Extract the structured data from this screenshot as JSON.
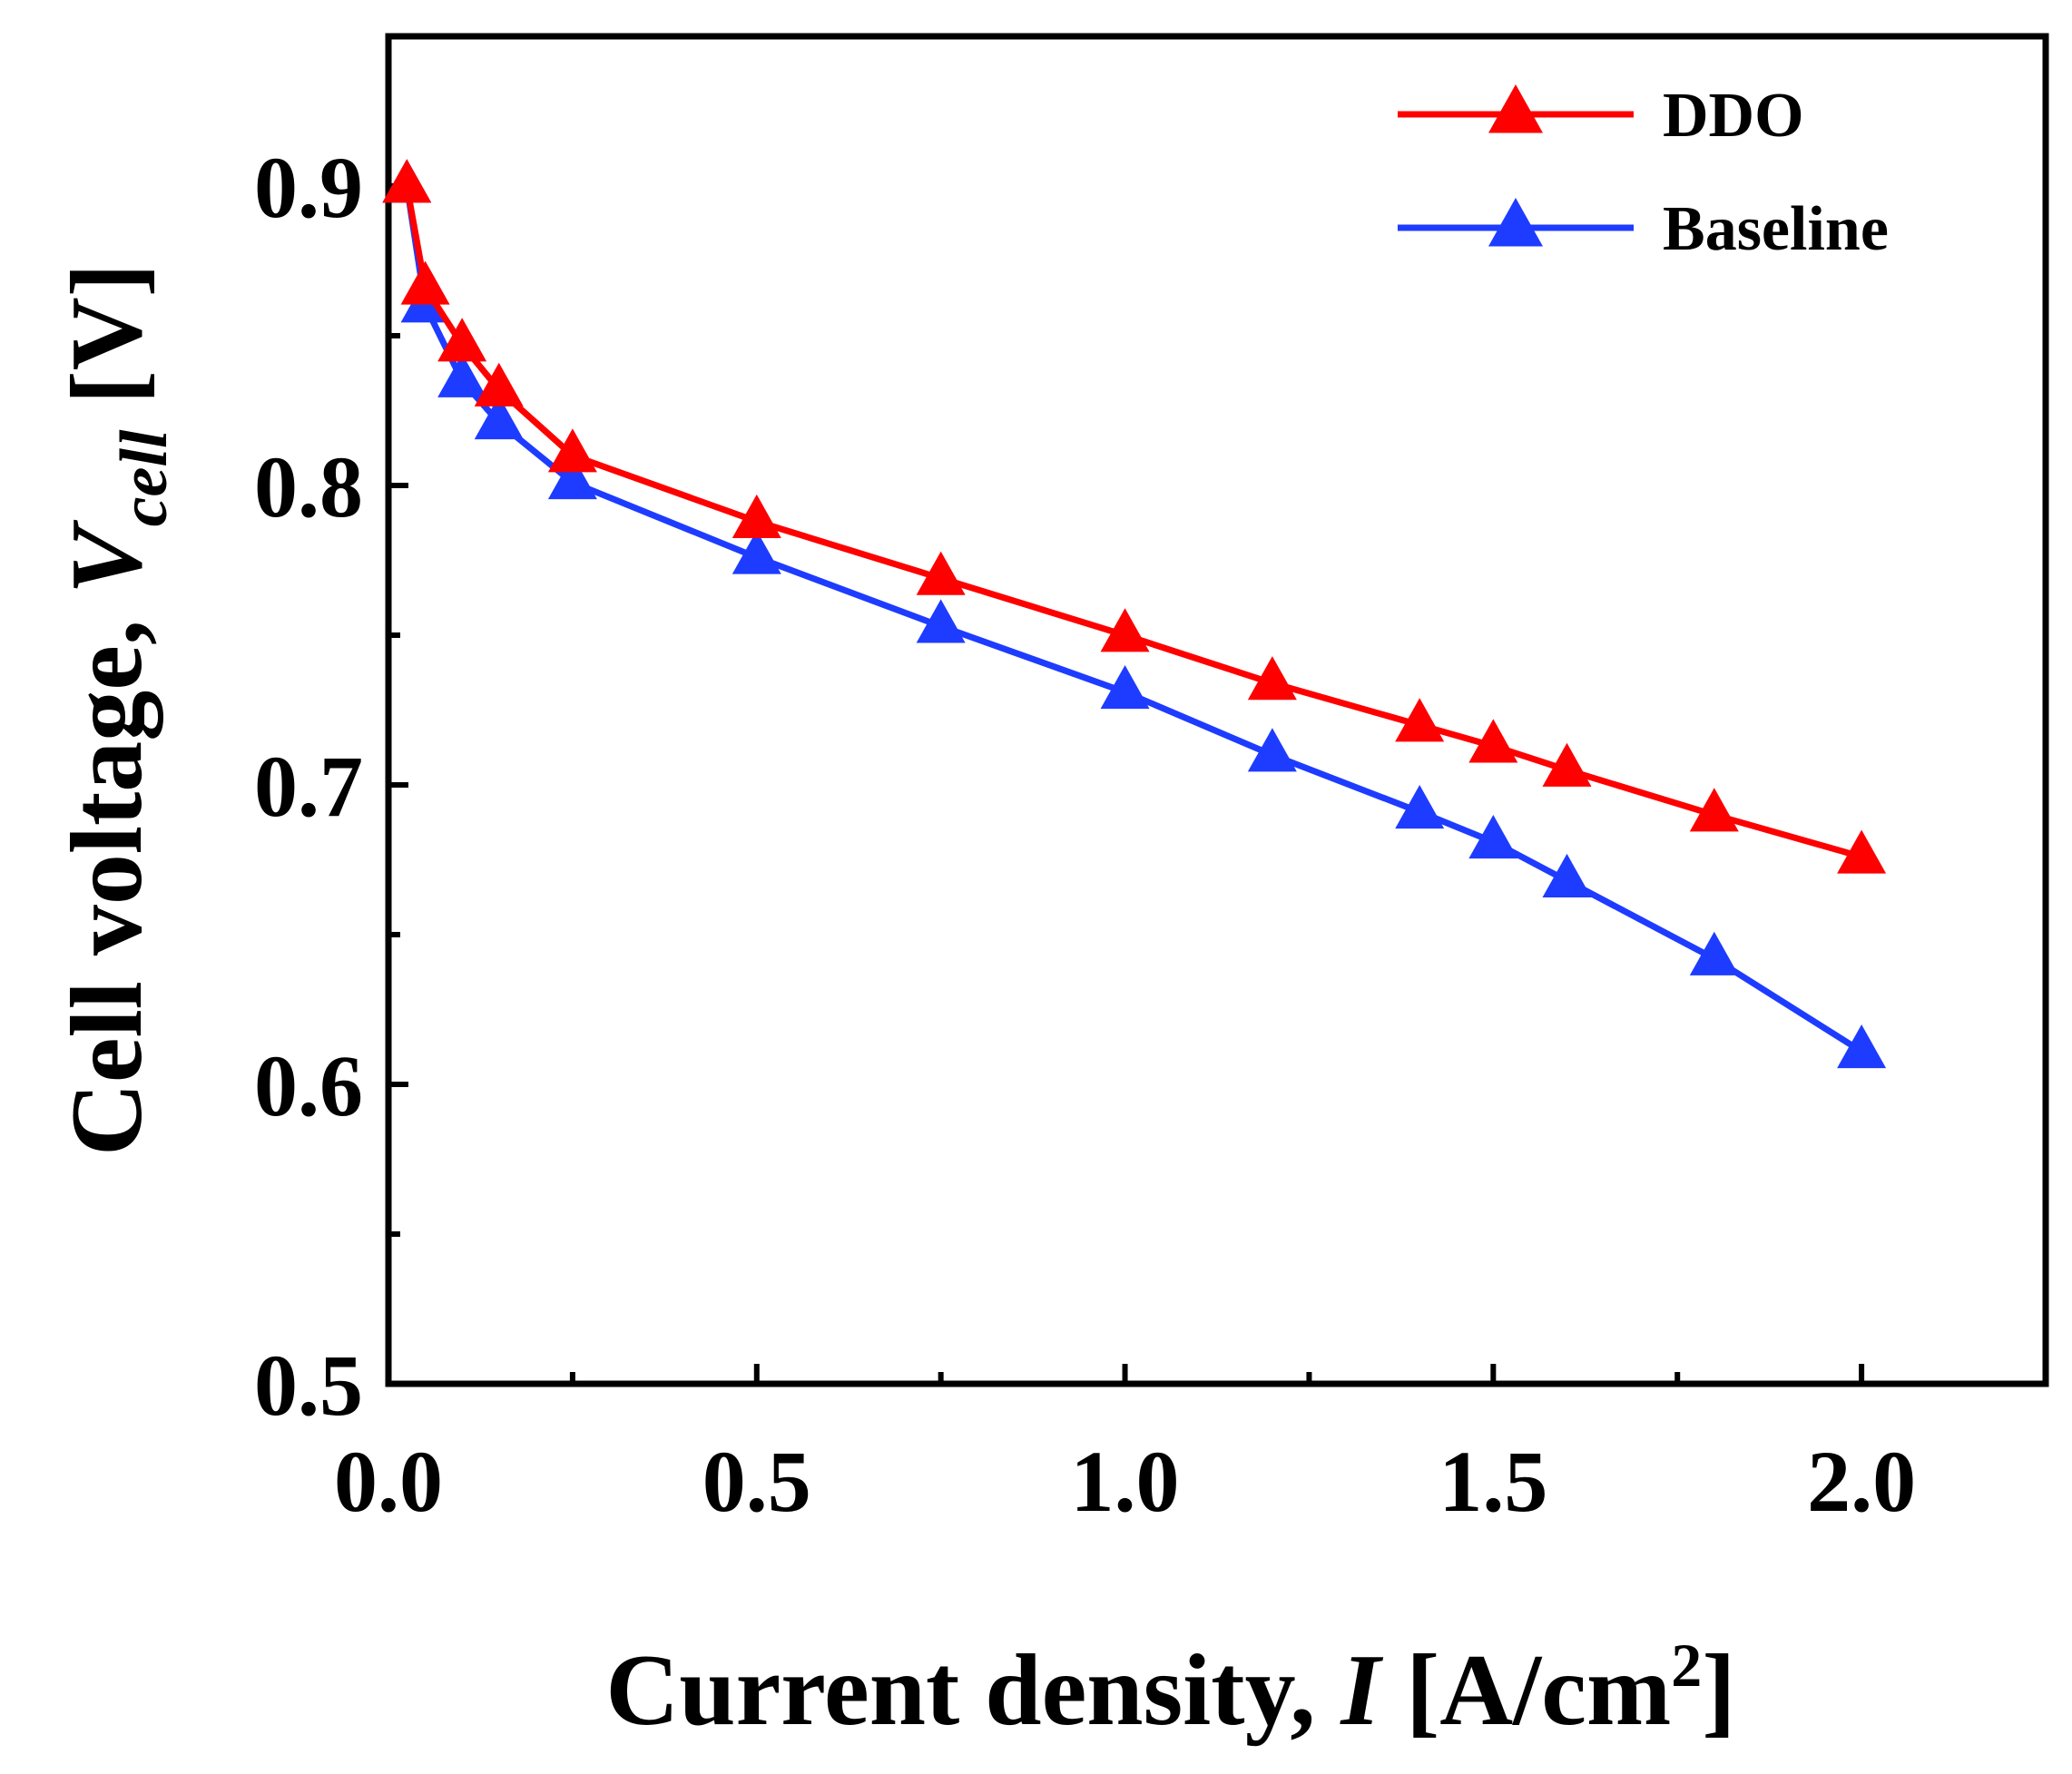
{
  "chart_data": {
    "type": "line",
    "title": "",
    "xlabel": {
      "prefix": "Current density, ",
      "symbol": "I",
      "unit_open": " [A/cm",
      "unit_sup": "2",
      "unit_close": "]"
    },
    "ylabel": {
      "prefix": "Cell voltage, ",
      "symbol": "V",
      "subscript": "cell",
      "unit": " [V]"
    },
    "xlim": [
      0.0,
      2.25
    ],
    "ylim": [
      0.5,
      0.95
    ],
    "x_ticks": [
      0.0,
      0.5,
      1.0,
      1.5,
      2.0
    ],
    "x_tick_labels": [
      "0.0",
      "0.5",
      "1.0",
      "1.5",
      "2.0"
    ],
    "x_minor_ticks": [
      0.25,
      0.75,
      1.25,
      1.75
    ],
    "y_ticks": [
      0.5,
      0.6,
      0.7,
      0.8,
      0.9
    ],
    "y_tick_labels": [
      "0.5",
      "0.6",
      "0.7",
      "0.8",
      "0.9"
    ],
    "y_minor_ticks": [
      0.55,
      0.65,
      0.75,
      0.85
    ],
    "grid": false,
    "legend_position": "top-right",
    "series": [
      {
        "name": "DDO",
        "color": "#ff0000",
        "marker": "triangle",
        "x": [
          0.025,
          0.05,
          0.1,
          0.15,
          0.25,
          0.5,
          0.75,
          1.0,
          1.2,
          1.4,
          1.5,
          1.6,
          1.8,
          2.0
        ],
        "y": [
          0.9,
          0.866,
          0.847,
          0.832,
          0.81,
          0.788,
          0.769,
          0.75,
          0.734,
          0.72,
          0.713,
          0.705,
          0.69,
          0.676
        ]
      },
      {
        "name": "Baseline",
        "color": "#1e3cff",
        "marker": "triangle",
        "x": [
          0.025,
          0.05,
          0.1,
          0.15,
          0.25,
          0.5,
          0.75,
          1.0,
          1.2,
          1.4,
          1.5,
          1.6,
          1.8,
          2.0
        ],
        "y": [
          0.9,
          0.86,
          0.835,
          0.821,
          0.801,
          0.776,
          0.753,
          0.731,
          0.71,
          0.691,
          0.681,
          0.668,
          0.642,
          0.611
        ]
      }
    ]
  }
}
